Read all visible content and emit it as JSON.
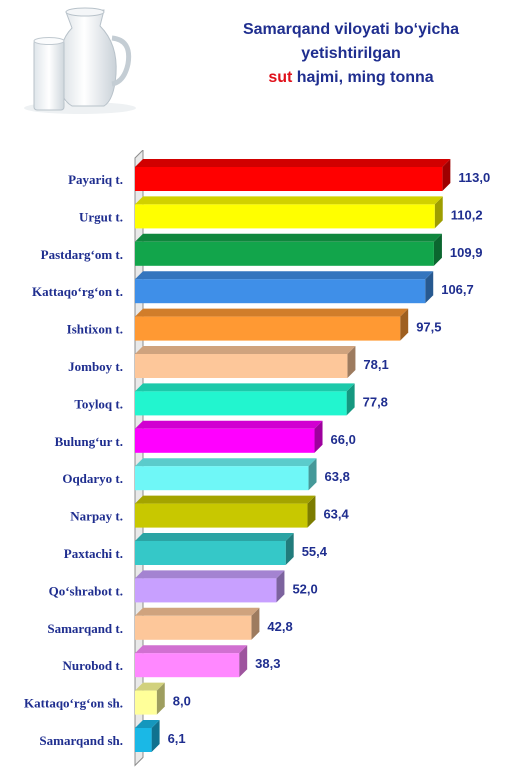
{
  "title": {
    "line1": "Samarqand viloyati bo‘yicha",
    "line2": "yetishtirilgan",
    "highlight": "sut",
    "line3_rest": " hajmi, ming tonna",
    "highlight_color": "#e0101a",
    "text_color": "#1f2e8f"
  },
  "illustration": {
    "icon": "milk-jug-and-glass-icon"
  },
  "chart_data": {
    "type": "bar",
    "orientation": "horizontal",
    "title": "Samarqand viloyati bo‘yicha yetishtirilgan sut hajmi, ming tonna",
    "xlim": [
      0,
      125
    ],
    "grid": false,
    "categories": [
      "Payariq t.",
      "Urgut t.",
      "Pastdarg‘om t.",
      "Kattaqo‘rg‘on t.",
      "Ishtixon t.",
      "Jomboy t.",
      "Toyloq t.",
      "Bulung‘ur t.",
      "Oqdaryo t.",
      "Narpay t.",
      "Paxtachi t.",
      "Qo‘shrabot t.",
      "Samarqand t.",
      "Nurobod t.",
      "Kattaqo‘rg‘on sh.",
      "Samarqand sh."
    ],
    "values": [
      113.0,
      110.2,
      109.9,
      106.7,
      97.5,
      78.1,
      77.8,
      66.0,
      63.8,
      63.4,
      55.4,
      52.0,
      42.8,
      38.3,
      8.0,
      6.1
    ],
    "value_labels": [
      "113,0",
      "110,2",
      "109,9",
      "106,7",
      "97,5",
      "78,1",
      "77,8",
      "66,0",
      "63,8",
      "63,4",
      "55,4",
      "52,0",
      "42,8",
      "38,3",
      "8,0",
      "6,1"
    ],
    "colors": [
      "#ff0000",
      "#ffff00",
      "#12a54b",
      "#3f8fe8",
      "#ff9933",
      "#fdc79a",
      "#22f5cf",
      "#ff00ff",
      "#6ff7f7",
      "#c8c800",
      "#35c8c8",
      "#c8a0ff",
      "#fdc79a",
      "#ff88ff",
      "#ffff99",
      "#1ab8e6"
    ]
  }
}
